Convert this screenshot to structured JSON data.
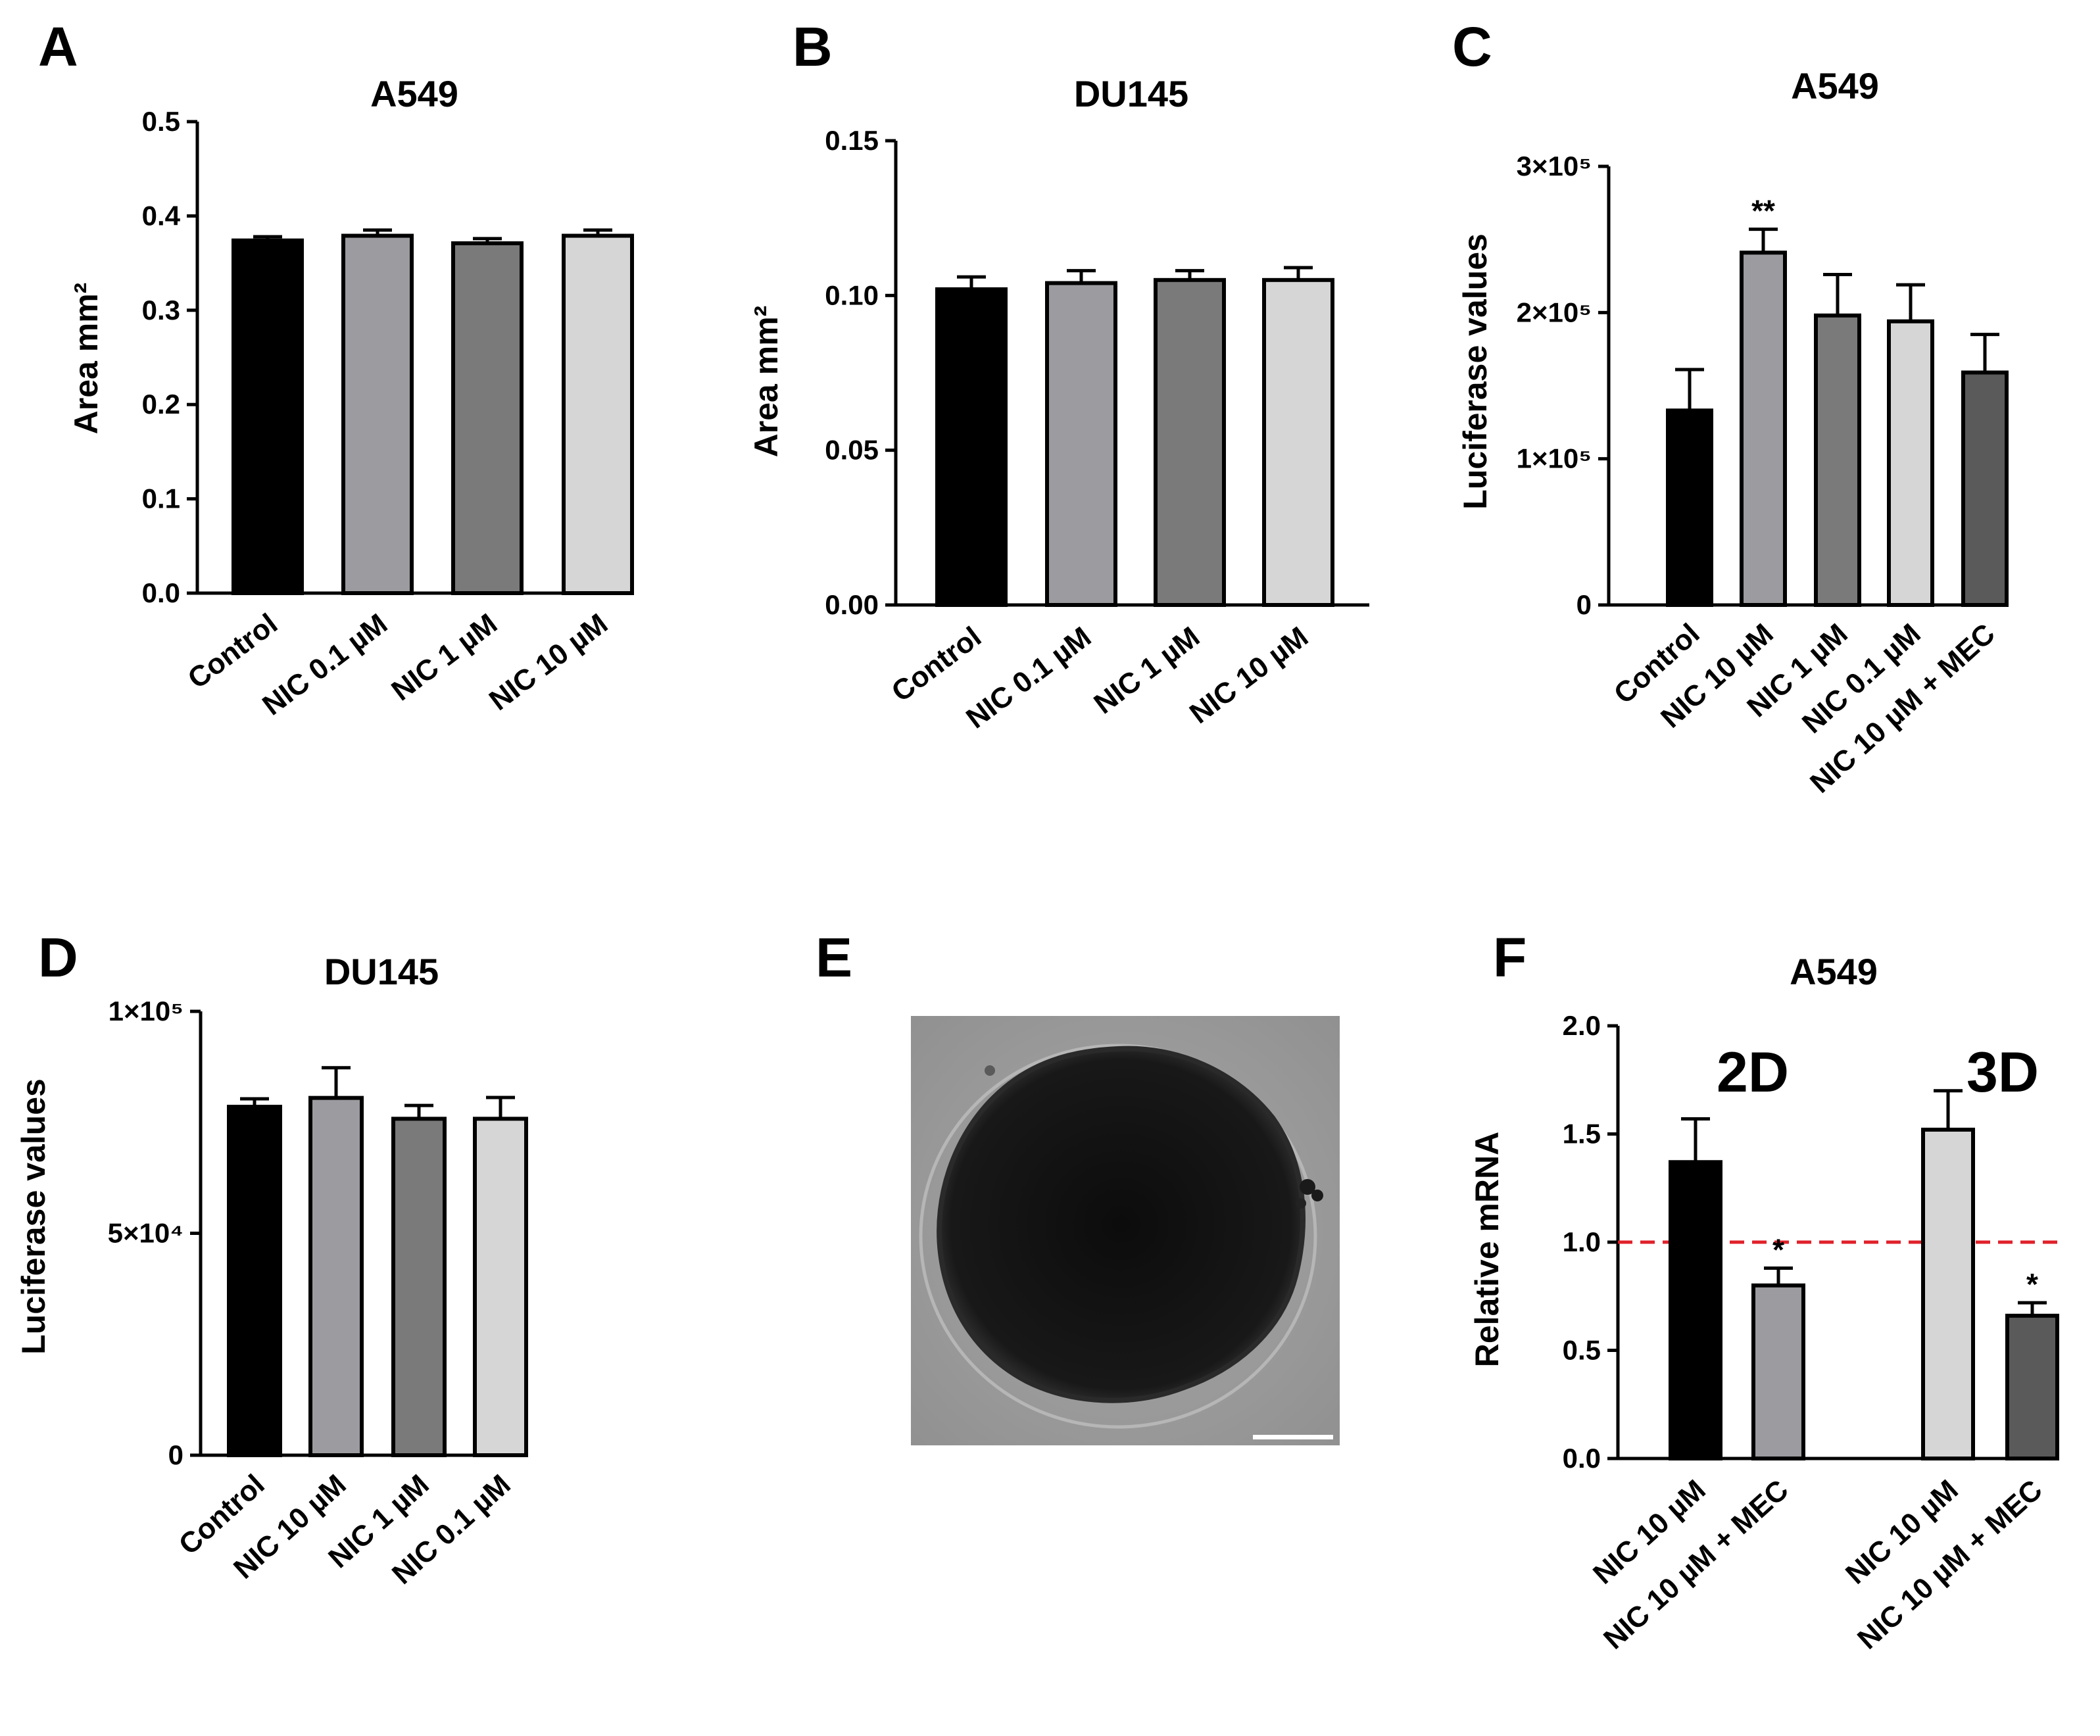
{
  "panel_letters": [
    "A",
    "B",
    "C",
    "D",
    "E",
    "F"
  ],
  "colors": {
    "black": "#000000",
    "mid_gray": "#9b9ba0",
    "dark_gray": "#7a7a7a",
    "light_gray": "#d6d6d6",
    "darker_gray": "#5a5a5a",
    "reference_line": "#e0202a"
  },
  "chart_data": [
    {
      "panel": "A",
      "type": "bar",
      "title": "A549",
      "ylabel": "Area mm²",
      "categories": [
        "Control",
        "NIC 0.1 µM",
        "NIC 1 µM",
        "NIC 10 µM"
      ],
      "values": [
        0.374,
        0.379,
        0.371,
        0.379
      ],
      "errors": [
        0.004,
        0.006,
        0.005,
        0.006
      ],
      "ylim": [
        0,
        0.5
      ],
      "yticks": [
        0.0,
        0.1,
        0.2,
        0.3,
        0.4,
        0.5
      ],
      "ytick_labels": [
        "0.0",
        "0.1",
        "0.2",
        "0.3",
        "0.4",
        "0.5"
      ],
      "bar_colors": [
        "#000000",
        "#9b9ba0",
        "#7a7a7a",
        "#d6d6d6"
      ],
      "significance": [
        "",
        "",
        "",
        ""
      ]
    },
    {
      "panel": "B",
      "type": "bar",
      "title": "DU145",
      "ylabel": "Area mm²",
      "categories": [
        "Control",
        "NIC 0.1 µM",
        "NIC 1 µM",
        "NIC 10 µM"
      ],
      "values": [
        0.102,
        0.104,
        0.105,
        0.105
      ],
      "errors": [
        0.004,
        0.004,
        0.003,
        0.004
      ],
      "ylim": [
        0,
        0.15
      ],
      "yticks": [
        0.0,
        0.05,
        0.1,
        0.15
      ],
      "ytick_labels": [
        "0.00",
        "0.05",
        "0.10",
        "0.15"
      ],
      "bar_colors": [
        "#000000",
        "#9b9ba0",
        "#7a7a7a",
        "#d6d6d6"
      ],
      "significance": [
        "",
        "",
        "",
        ""
      ]
    },
    {
      "panel": "C",
      "type": "bar",
      "title": "A549",
      "ylabel": "Luciferase values",
      "categories": [
        "Control",
        "NIC 10 µM",
        "NIC 1 µM",
        "NIC 0.1 µM",
        "NIC 10 µM + MEC"
      ],
      "values": [
        133000,
        241000,
        198000,
        194000,
        159000
      ],
      "errors": [
        28000,
        16000,
        28000,
        25000,
        26000
      ],
      "ylim": [
        0,
        300000
      ],
      "yticks": [
        0,
        100000,
        200000,
        300000
      ],
      "ytick_labels": [
        "0",
        "1×10⁵",
        "2×10⁵",
        "3×10⁵"
      ],
      "bar_colors": [
        "#000000",
        "#9b9ba0",
        "#7a7a7a",
        "#d6d6d6",
        "#5a5a5a"
      ],
      "significance": [
        "",
        "**",
        "",
        "",
        ""
      ]
    },
    {
      "panel": "D",
      "type": "bar",
      "title": "DU145",
      "ylabel": "Luciferase values",
      "categories": [
        "Control",
        "NIC 10 µM",
        "NIC 1 µM",
        "NIC 0.1 µM"
      ],
      "values": [
        78500,
        80500,
        75800,
        75800
      ],
      "errors": [
        1800,
        6800,
        3000,
        4800
      ],
      "ylim": [
        0,
        100000
      ],
      "yticks": [
        0,
        50000,
        100000
      ],
      "ytick_labels": [
        "0",
        "5×10⁴",
        "1×10⁵"
      ],
      "bar_colors": [
        "#000000",
        "#9b9ba0",
        "#7a7a7a",
        "#d6d6d6"
      ],
      "significance": [
        "",
        "",
        "",
        ""
      ]
    },
    {
      "panel": "F",
      "type": "bar",
      "title": "A549",
      "ylabel": "Relative mRNA",
      "categories": [
        "NIC 10 µM",
        "NIC 10 µM + MEC",
        "NIC 10 µM",
        "NIC 10 µM + MEC"
      ],
      "groups": [
        "2D",
        "3D"
      ],
      "values": [
        1.37,
        0.8,
        1.52,
        0.66
      ],
      "errors": [
        0.2,
        0.08,
        0.18,
        0.06
      ],
      "ylim": [
        0,
        2.0
      ],
      "yticks": [
        0.0,
        0.5,
        1.0,
        1.5,
        2.0
      ],
      "ytick_labels": [
        "0.0",
        "0.5",
        "1.0",
        "1.5",
        "2.0"
      ],
      "bar_colors": [
        "#000000",
        "#9b9ba0",
        "#d6d6d6",
        "#5a5a5a"
      ],
      "significance": [
        "",
        "*",
        "",
        "*"
      ],
      "reference_line": 1.0
    }
  ]
}
